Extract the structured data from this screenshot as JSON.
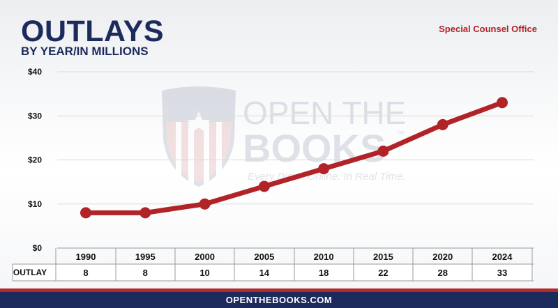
{
  "header": {
    "title": "OUTLAYS",
    "subtitle": "BY YEAR/IN MILLIONS",
    "source": "Special Counsel Office"
  },
  "watermark": {
    "line1": "OPEN THE",
    "line2": "BOOKS",
    "tagline": "Every Dime. Online. In Real Time.",
    "trademark": "™"
  },
  "footer": {
    "text": "OPENTHEBOOKS.COM"
  },
  "colors": {
    "line": "#b12327",
    "navy": "#1d2b5c",
    "accent_red": "#b32a2c"
  },
  "chart_data": {
    "type": "line",
    "x": [
      "1990",
      "1995",
      "2000",
      "2005",
      "2010",
      "2015",
      "2020",
      "2024"
    ],
    "values": [
      8,
      8,
      10,
      14,
      18,
      22,
      28,
      33
    ],
    "ylim": [
      0,
      40
    ],
    "yticks": [
      0,
      10,
      20,
      30,
      40
    ],
    "ytick_labels": [
      "$0",
      "$10",
      "$20",
      "$30",
      "$40"
    ],
    "grid": true,
    "table_row_label": "OUTLAY",
    "table_values": [
      "8",
      "8",
      "10",
      "14",
      "18",
      "22",
      "28",
      "33"
    ]
  }
}
